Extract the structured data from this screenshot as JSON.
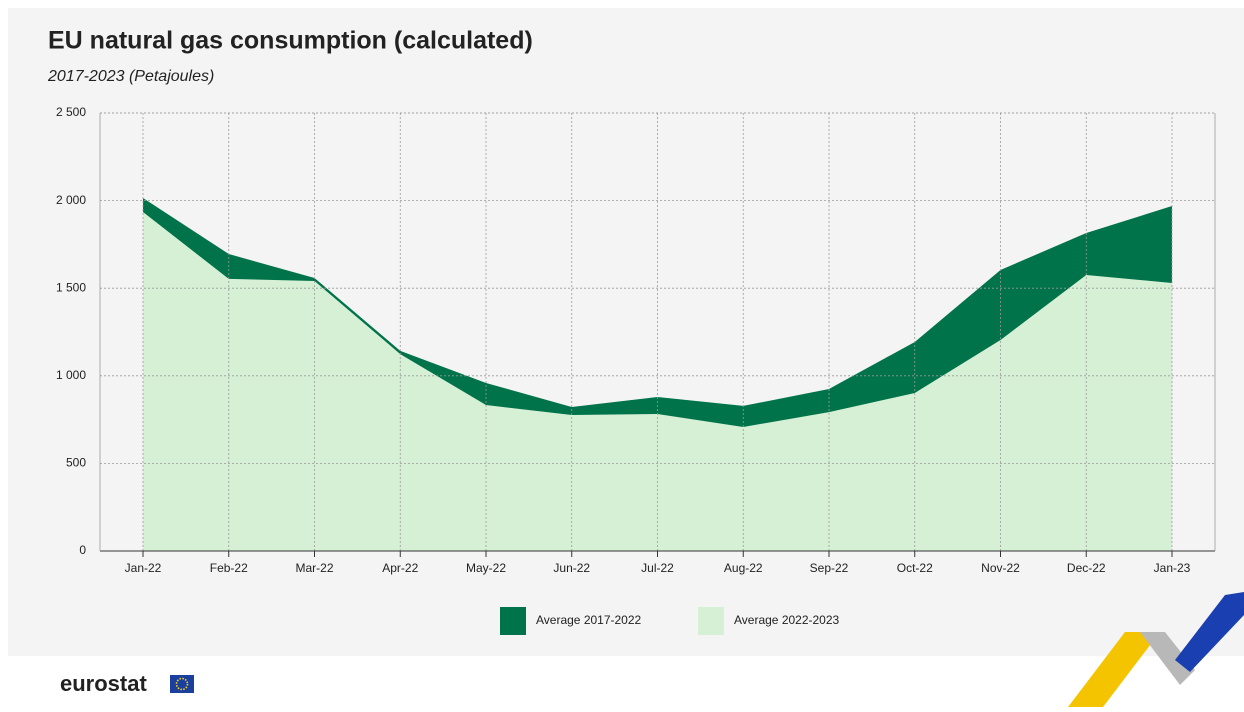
{
  "chart_data": {
    "type": "area",
    "title": "EU natural gas consumption (calculated)",
    "subtitle": "2017-2023 (Petajoules)",
    "categories": [
      "Jan-22",
      "Feb-22",
      "Mar-22",
      "Apr-22",
      "May-22",
      "Jun-22",
      "Jul-22",
      "Aug-22",
      "Sep-22",
      "Oct-22",
      "Nov-22",
      "Dec-22",
      "Jan-23"
    ],
    "series": [
      {
        "name": "Average 2017-2022",
        "color": "#00734a",
        "values": [
          2015,
          1695,
          1558,
          1142,
          959,
          822,
          879,
          828,
          925,
          1193,
          1604,
          1815,
          1969
        ]
      },
      {
        "name": "Average 2022-2023",
        "color": "#d6f0d6",
        "values": [
          1935,
          1553,
          1541,
          1124,
          833,
          776,
          782,
          708,
          793,
          902,
          1204,
          1575,
          1530
        ]
      }
    ],
    "ylim": [
      0,
      2500
    ],
    "yticks": [
      0,
      500,
      {
        "value": 1000,
        "label": "1 000"
      },
      {
        "value": 1500,
        "label": "1 500"
      },
      {
        "value": 2000,
        "label": "2 000"
      },
      {
        "value": 2500,
        "label": "2 500"
      }
    ],
    "grid": true,
    "legend": "bottom",
    "source": "eurostat"
  }
}
